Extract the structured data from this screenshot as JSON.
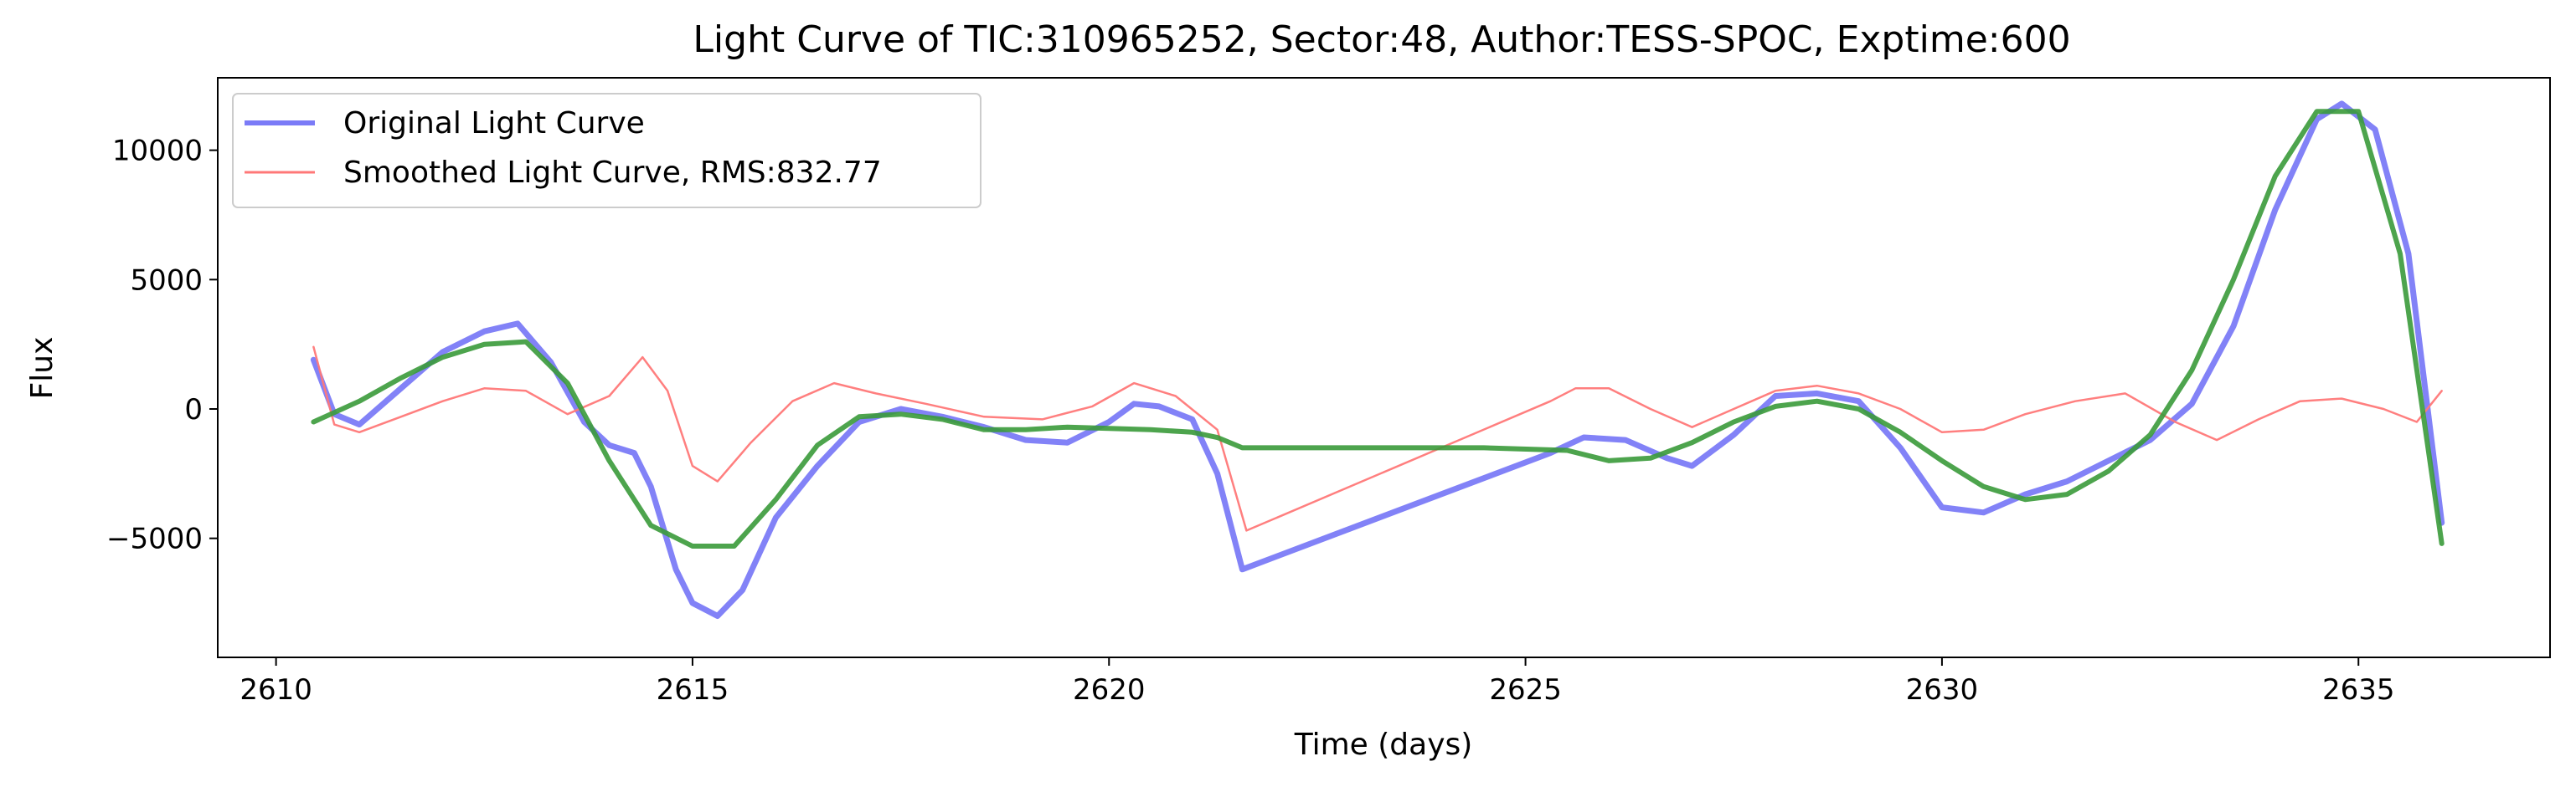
{
  "chart_data": {
    "type": "line",
    "title": "Light Curve of TIC:310965252, Sector:48, Author:TESS-SPOC, Exptime:600",
    "xlabel": "Time (days)",
    "ylabel": "Flux",
    "xlim": [
      2609.3,
      2637.3
    ],
    "ylim": [
      -9600,
      12800
    ],
    "x_ticks": [
      2610,
      2615,
      2620,
      2625,
      2630,
      2635
    ],
    "x_tick_labels": [
      "2610",
      "2615",
      "2620",
      "2625",
      "2630",
      "2635"
    ],
    "y_ticks": [
      -5000,
      0,
      5000,
      10000
    ],
    "y_tick_labels": [
      "−5000",
      "0",
      "5000",
      "10000"
    ],
    "grid": false,
    "legend_position": "upper-left",
    "series": [
      {
        "name": "Original Light Curve",
        "color": "#7b7bf7",
        "x": [
          2610.45,
          2610.7,
          2611.0,
          2611.5,
          2612.0,
          2612.5,
          2612.9,
          2613.3,
          2613.7,
          2614.0,
          2614.3,
          2614.5,
          2614.8,
          2615.0,
          2615.3,
          2615.6,
          2616.0,
          2616.5,
          2617.0,
          2617.5,
          2618.0,
          2618.5,
          2619.0,
          2619.5,
          2620.0,
          2620.3,
          2620.6,
          2621.0,
          2621.3,
          2621.6,
          2625.3,
          2625.7,
          2626.2,
          2626.7,
          2627.0,
          2627.5,
          2628.0,
          2628.5,
          2629.0,
          2629.5,
          2630.0,
          2630.5,
          2631.0,
          2631.5,
          2632.0,
          2632.5,
          2633.0,
          2633.5,
          2634.0,
          2634.5,
          2634.8,
          2635.2,
          2635.6,
          2636.0
        ],
        "y": [
          1900,
          -200,
          -600,
          800,
          2200,
          3000,
          3300,
          1800,
          -500,
          -1400,
          -1700,
          -3000,
          -6200,
          -7500,
          -8000,
          -7000,
          -4200,
          -2200,
          -500,
          0,
          -300,
          -700,
          -1200,
          -1300,
          -500,
          200,
          100,
          -400,
          -2500,
          -6200,
          -1700,
          -1100,
          -1200,
          -1900,
          -2200,
          -1000,
          500,
          600,
          300,
          -1500,
          -3800,
          -4000,
          -3300,
          -2800,
          -2000,
          -1200,
          200,
          3200,
          7700,
          11200,
          11800,
          10800,
          6000,
          -4400
        ]
      },
      {
        "name": "Smoothed Light Curve, RMS:832.77",
        "color": "#ff7878",
        "x": [
          2610.45,
          2610.7,
          2611.0,
          2611.5,
          2612.0,
          2612.5,
          2613.0,
          2613.5,
          2614.0,
          2614.4,
          2614.7,
          2615.0,
          2615.3,
          2615.7,
          2616.2,
          2616.7,
          2617.2,
          2617.8,
          2618.5,
          2619.2,
          2619.8,
          2620.3,
          2620.8,
          2621.3,
          2621.65,
          2625.3,
          2625.6,
          2626.0,
          2626.5,
          2627.0,
          2627.5,
          2628.0,
          2628.5,
          2629.0,
          2629.5,
          2630.0,
          2630.5,
          2631.0,
          2631.6,
          2632.2,
          2632.8,
          2633.3,
          2633.8,
          2634.3,
          2634.8,
          2635.3,
          2635.7,
          2636.0
        ],
        "y": [
          2400,
          -600,
          -900,
          -300,
          300,
          800,
          700,
          -200,
          500,
          2000,
          700,
          -2200,
          -2800,
          -1300,
          300,
          1000,
          600,
          200,
          -300,
          -400,
          100,
          1000,
          500,
          -800,
          -4700,
          300,
          800,
          800,
          0,
          -700,
          0,
          700,
          900,
          600,
          0,
          -900,
          -800,
          -200,
          300,
          600,
          -500,
          -1200,
          -400,
          300,
          400,
          0,
          -500,
          700
        ]
      },
      {
        "name": "",
        "color": "#3a9a3a",
        "x": [
          2610.45,
          2611.0,
          2611.5,
          2612.0,
          2612.5,
          2613.0,
          2613.5,
          2614.0,
          2614.5,
          2615.0,
          2615.5,
          2616.0,
          2616.5,
          2617.0,
          2617.5,
          2618.0,
          2618.5,
          2619.0,
          2619.5,
          2620.0,
          2620.5,
          2621.0,
          2621.3,
          2621.6,
          2623.0,
          2624.5,
          2625.5,
          2626.0,
          2626.5,
          2627.0,
          2627.5,
          2628.0,
          2628.5,
          2629.0,
          2629.5,
          2630.0,
          2630.5,
          2631.0,
          2631.5,
          2632.0,
          2632.5,
          2633.0,
          2633.5,
          2634.0,
          2634.5,
          2635.0,
          2635.5,
          2636.0
        ],
        "y": [
          -500,
          300,
          1200,
          2000,
          2500,
          2600,
          1000,
          -2000,
          -4500,
          -5300,
          -5300,
          -3500,
          -1400,
          -300,
          -200,
          -400,
          -800,
          -800,
          -700,
          -750,
          -800,
          -900,
          -1100,
          -1500,
          -1500,
          -1500,
          -1600,
          -2000,
          -1900,
          -1300,
          -500,
          100,
          300,
          0,
          -900,
          -2000,
          -3000,
          -3500,
          -3300,
          -2400,
          -1000,
          1500,
          5000,
          9000,
          11500,
          11500,
          6000,
          -5200
        ]
      }
    ]
  }
}
